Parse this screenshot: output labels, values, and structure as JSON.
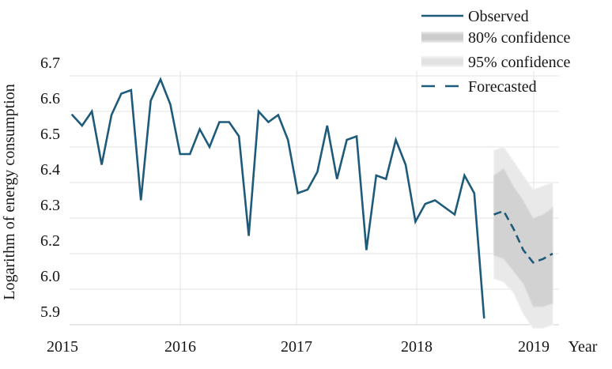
{
  "chart_data": {
    "type": "line",
    "title": "",
    "xlabel": "Year",
    "ylabel": "Logarithm of energy consumption",
    "x_axis": {
      "title": "Year",
      "tick_labels": [
        "2015",
        "2016",
        "2017",
        "2018",
        "2019"
      ]
    },
    "y_axis": {
      "title": "Logarithm of energy consumption",
      "tick_labels": [
        "6.7",
        "6.6",
        "6.5",
        "6.4",
        "6.3",
        "6.2",
        "6.0",
        "5.9"
      ],
      "tick_values": [
        6.7,
        6.6,
        6.5,
        6.4,
        6.3,
        6.2,
        6.0,
        5.9
      ]
    },
    "legend": [
      {
        "label": "Observed",
        "style": "solid-line"
      },
      {
        "label": "80% confidence",
        "style": "dark-gray-band"
      },
      {
        "label": "95% confidence",
        "style": "light-gray-band"
      },
      {
        "label": "Forecasted",
        "style": "dashed-line"
      }
    ],
    "grid": "on",
    "legend_position": "top-right",
    "series": {
      "observed": {
        "name": "Observed",
        "start_month": "2015-02",
        "frequency": "monthly",
        "values": [
          6.59,
          6.56,
          6.6,
          6.45,
          6.59,
          6.65,
          6.66,
          6.35,
          6.63,
          6.69,
          6.62,
          6.48,
          6.48,
          6.55,
          6.5,
          6.57,
          6.57,
          6.53,
          6.25,
          6.6,
          6.57,
          6.59,
          6.52,
          6.37,
          6.38,
          6.43,
          6.56,
          6.41,
          6.52,
          6.53,
          6.21,
          6.42,
          6.41,
          6.52,
          6.45,
          6.29,
          6.34,
          6.35,
          6.33,
          6.31,
          6.42,
          6.37,
          5.92
        ]
      },
      "forecast": {
        "name": "Forecasted",
        "start_month": "2018-09",
        "frequency": "monthly",
        "mean": [
          6.31,
          6.32,
          6.27,
          6.21,
          6.15,
          6.17,
          6.2
        ],
        "ci80_upper": [
          6.42,
          6.44,
          6.39,
          6.35,
          6.3,
          6.31,
          6.33
        ],
        "ci80_lower": [
          6.19,
          6.17,
          6.1,
          6.03,
          5.95,
          5.95,
          5.96
        ],
        "ci95_upper": [
          6.49,
          6.5,
          6.46,
          6.42,
          6.38,
          6.39,
          6.4
        ],
        "ci95_lower": [
          6.06,
          6.04,
          5.99,
          5.93,
          5.89,
          5.89,
          5.9
        ]
      }
    },
    "colors": {
      "observed_line": "#1e5b7a",
      "forecast_line": "#1e5b7a",
      "band80_fill": "#d2d2d2",
      "band80_edge": "#e0e0e0",
      "band95_fill": "#e9e9e9",
      "band95_edge": "#f3f3f3",
      "grid": "#e3e3e3",
      "grid_bottom": "#cfcfcf",
      "text": "#161616"
    }
  }
}
